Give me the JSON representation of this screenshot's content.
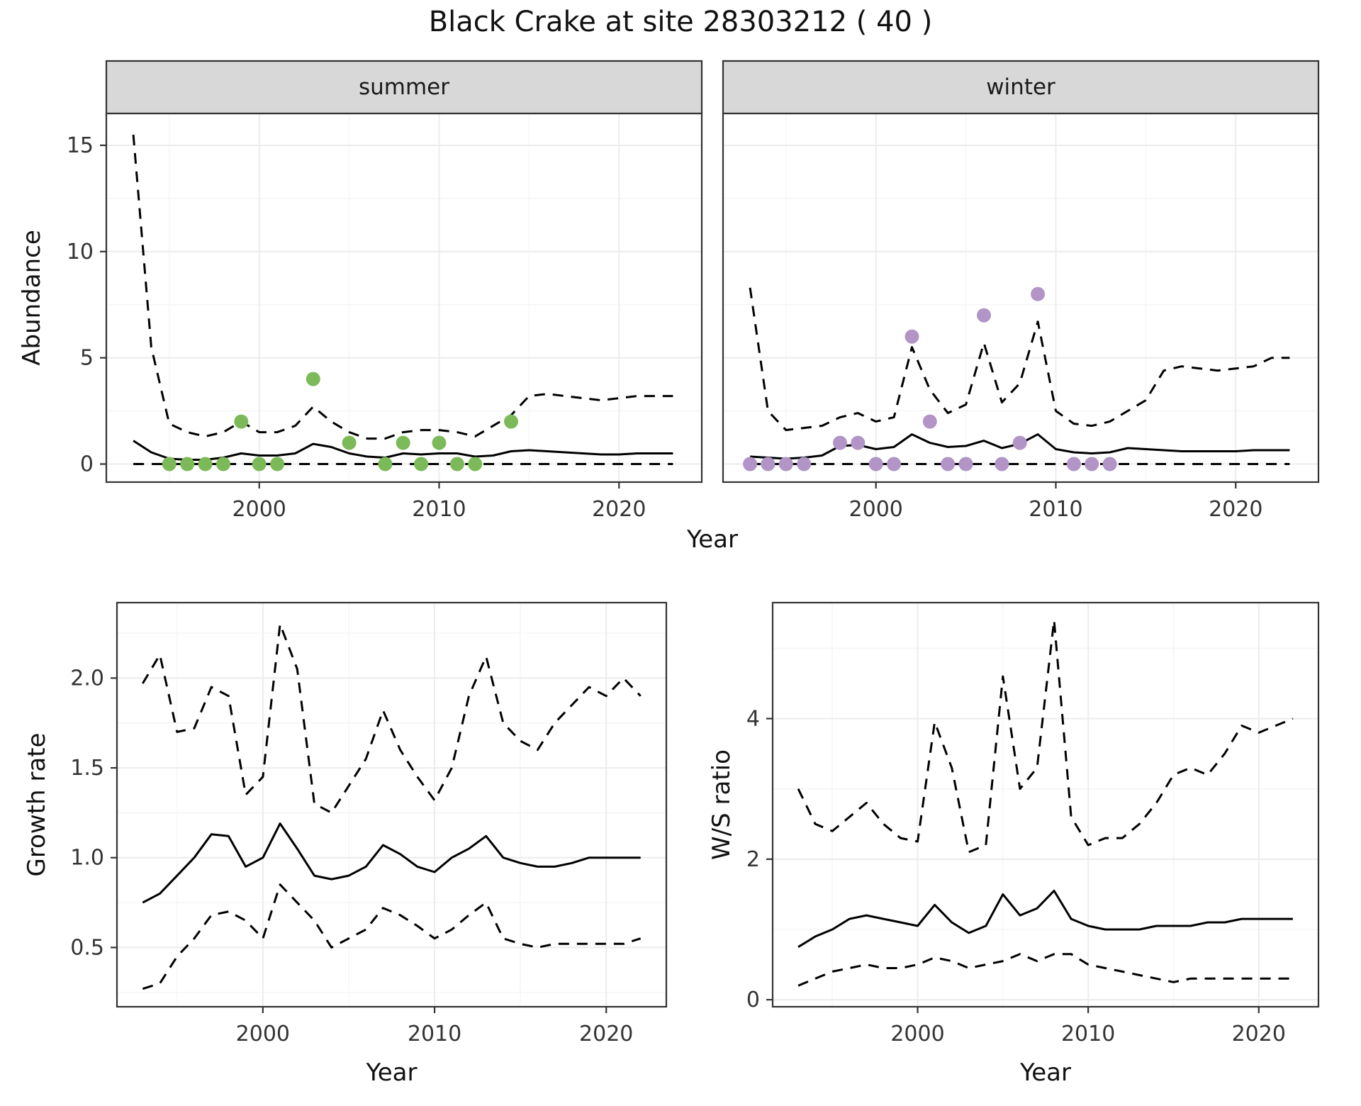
{
  "title": "Black Crake at site 28303212 ( 40 )",
  "background": "#ffffff",
  "colors": {
    "line": "#000000",
    "summer_point": "#7cba59",
    "winter_point": "#b294c7",
    "strip_bg": "#d8d8d8",
    "panel_border": "#333333",
    "grid_major": "#ececec",
    "grid_minor": "#f6f6f6",
    "tick_text": "#333333"
  },
  "chart_data": [
    {
      "type": "line",
      "facet": "summer",
      "xlabel": "Year",
      "ylabel": "Abundance",
      "xlim": [
        1991.5,
        2024.6
      ],
      "ylim": [
        -0.85,
        16.5
      ],
      "xticks": [
        2000,
        2010,
        2020
      ],
      "xtick_labels": [
        "2000",
        "2010",
        "2020"
      ],
      "yticks": [
        0,
        5,
        10,
        15
      ],
      "ytick_labels": [
        "0",
        "5",
        "10",
        "15"
      ],
      "xticks_minor": [
        1995,
        2005,
        2015
      ],
      "yticks_minor": [
        2.5,
        7.5,
        12.5
      ],
      "x": [
        1993,
        1994,
        1995,
        1996,
        1997,
        1998,
        1999,
        2000,
        2001,
        2002,
        2003,
        2004,
        2005,
        2006,
        2007,
        2008,
        2009,
        2010,
        2011,
        2012,
        2013,
        2014,
        2015,
        2016,
        2017,
        2018,
        2019,
        2020,
        2021,
        2022,
        2023
      ],
      "series": [
        {
          "name": "median",
          "style": "solid",
          "values": [
            1.1,
            0.55,
            0.25,
            0.2,
            0.2,
            0.3,
            0.5,
            0.4,
            0.4,
            0.5,
            0.95,
            0.8,
            0.5,
            0.35,
            0.3,
            0.5,
            0.45,
            0.5,
            0.5,
            0.35,
            0.4,
            0.6,
            0.65,
            0.6,
            0.55,
            0.5,
            0.45,
            0.45,
            0.5,
            0.5,
            0.5
          ]
        },
        {
          "name": "upper_ci",
          "style": "dashed",
          "values": [
            15.5,
            5.5,
            1.9,
            1.5,
            1.3,
            1.5,
            2.0,
            1.5,
            1.5,
            1.8,
            2.7,
            2.0,
            1.5,
            1.2,
            1.2,
            1.5,
            1.6,
            1.6,
            1.5,
            1.3,
            1.8,
            2.3,
            3.2,
            3.3,
            3.2,
            3.1,
            3.0,
            3.1,
            3.2,
            3.2,
            3.2
          ]
        },
        {
          "name": "lower_ci",
          "style": "dashed",
          "values": [
            0,
            0,
            0,
            0,
            0,
            0,
            0,
            0,
            0,
            0,
            0,
            0,
            0,
            0,
            0,
            0,
            0,
            0,
            0,
            0,
            0,
            0,
            0,
            0,
            0,
            0,
            0,
            0,
            0,
            0,
            0
          ]
        }
      ],
      "points": {
        "name": "observed_counts",
        "color_key": "summer_point",
        "x": [
          1995,
          1996,
          1997,
          1998,
          1999,
          2000,
          2001,
          2003,
          2005,
          2007,
          2008,
          2009,
          2010,
          2011,
          2012,
          2014
        ],
        "y": [
          0,
          0,
          0,
          0,
          2,
          0,
          0,
          4,
          1,
          0,
          1,
          0,
          1,
          0,
          0,
          2
        ]
      }
    },
    {
      "type": "line",
      "facet": "winter",
      "xlabel": "Year",
      "ylabel": "Abundance",
      "xlim": [
        1991.5,
        2024.6
      ],
      "ylim": [
        -0.85,
        16.5
      ],
      "xticks": [
        2000,
        2010,
        2020
      ],
      "xtick_labels": [
        "2000",
        "2010",
        "2020"
      ],
      "yticks": [
        0,
        5,
        10,
        15
      ],
      "ytick_labels": [
        "0",
        "5",
        "10",
        "15"
      ],
      "xticks_minor": [
        1995,
        2005,
        2015
      ],
      "yticks_minor": [
        2.5,
        7.5,
        12.5
      ],
      "x": [
        1993,
        1994,
        1995,
        1996,
        1997,
        1998,
        1999,
        2000,
        2001,
        2002,
        2003,
        2004,
        2005,
        2006,
        2007,
        2008,
        2009,
        2010,
        2011,
        2012,
        2013,
        2014,
        2015,
        2016,
        2017,
        2018,
        2019,
        2020,
        2021,
        2022,
        2023
      ],
      "series": [
        {
          "name": "median",
          "style": "solid",
          "values": [
            0.35,
            0.3,
            0.25,
            0.3,
            0.4,
            0.85,
            0.9,
            0.7,
            0.8,
            1.4,
            1.0,
            0.8,
            0.85,
            1.1,
            0.75,
            0.95,
            1.4,
            0.7,
            0.55,
            0.5,
            0.55,
            0.75,
            0.7,
            0.65,
            0.6,
            0.6,
            0.6,
            0.6,
            0.65,
            0.65,
            0.65
          ]
        },
        {
          "name": "upper_ci",
          "style": "dashed",
          "values": [
            8.3,
            2.5,
            1.6,
            1.7,
            1.8,
            2.2,
            2.4,
            2.0,
            2.2,
            5.5,
            3.5,
            2.4,
            2.8,
            5.7,
            2.9,
            3.8,
            6.7,
            2.5,
            1.9,
            1.8,
            2.0,
            2.5,
            3.0,
            4.4,
            4.6,
            4.5,
            4.4,
            4.5,
            4.6,
            5.0,
            5.0
          ]
        },
        {
          "name": "lower_ci",
          "style": "dashed",
          "values": [
            0,
            0,
            0,
            0,
            0,
            0,
            0,
            0,
            0,
            0,
            0,
            0,
            0,
            0,
            0,
            0,
            0,
            0,
            0,
            0,
            0,
            0,
            0,
            0,
            0,
            0,
            0,
            0,
            0,
            0,
            0
          ]
        }
      ],
      "points": {
        "name": "observed_counts",
        "color_key": "winter_point",
        "x": [
          1993,
          1994,
          1995,
          1996,
          1998,
          1999,
          2000,
          2001,
          2002,
          2003,
          2004,
          2005,
          2006,
          2007,
          2008,
          2009,
          2011,
          2012,
          2013
        ],
        "y": [
          0,
          0,
          0,
          0,
          1,
          1,
          0,
          0,
          6,
          2,
          0,
          0,
          7,
          0,
          1,
          8,
          0,
          0,
          0
        ]
      }
    },
    {
      "type": "line",
      "xlabel": "Year",
      "ylabel": "Growth rate",
      "xlim": [
        1991.5,
        2023.5
      ],
      "ylim": [
        0.17,
        2.42
      ],
      "xticks": [
        2000,
        2010,
        2020
      ],
      "xtick_labels": [
        "2000",
        "2010",
        "2020"
      ],
      "yticks": [
        0.5,
        1.0,
        1.5,
        2.0
      ],
      "ytick_labels": [
        "0.5",
        "1.0",
        "1.5",
        "2.0"
      ],
      "xticks_minor": [
        1995,
        2005,
        2015
      ],
      "yticks_minor": [
        0.25,
        0.75,
        1.25,
        1.75,
        2.25
      ],
      "x": [
        1993,
        1994,
        1995,
        1996,
        1997,
        1998,
        1999,
        2000,
        2001,
        2002,
        2003,
        2004,
        2005,
        2006,
        2007,
        2008,
        2009,
        2010,
        2011,
        2012,
        2013,
        2014,
        2015,
        2016,
        2017,
        2018,
        2019,
        2020,
        2021,
        2022
      ],
      "series": [
        {
          "name": "median",
          "style": "solid",
          "values": [
            0.75,
            0.8,
            0.9,
            1.0,
            1.13,
            1.12,
            0.95,
            1.0,
            1.19,
            1.05,
            0.9,
            0.88,
            0.9,
            0.95,
            1.07,
            1.02,
            0.95,
            0.92,
            1.0,
            1.05,
            1.12,
            1.0,
            0.97,
            0.95,
            0.95,
            0.97,
            1.0,
            1.0,
            1.0,
            1.0
          ]
        },
        {
          "name": "upper_ci",
          "style": "dashed",
          "values": [
            1.97,
            2.13,
            1.7,
            1.72,
            1.95,
            1.9,
            1.35,
            1.45,
            2.3,
            2.05,
            1.3,
            1.25,
            1.4,
            1.55,
            1.82,
            1.6,
            1.45,
            1.32,
            1.5,
            1.9,
            2.12,
            1.75,
            1.65,
            1.6,
            1.75,
            1.85,
            1.95,
            1.9,
            2.0,
            1.9
          ]
        },
        {
          "name": "lower_ci",
          "style": "dashed",
          "values": [
            0.27,
            0.3,
            0.45,
            0.55,
            0.68,
            0.7,
            0.65,
            0.55,
            0.85,
            0.75,
            0.65,
            0.5,
            0.55,
            0.6,
            0.72,
            0.68,
            0.62,
            0.55,
            0.6,
            0.68,
            0.75,
            0.55,
            0.52,
            0.5,
            0.52,
            0.52,
            0.52,
            0.52,
            0.52,
            0.55
          ]
        }
      ]
    },
    {
      "type": "line",
      "xlabel": "Year",
      "ylabel": "W/S ratio",
      "xlim": [
        1991.5,
        2023.5
      ],
      "ylim": [
        -0.1,
        5.65
      ],
      "xticks": [
        2000,
        2010,
        2020
      ],
      "xtick_labels": [
        "2000",
        "2010",
        "2020"
      ],
      "yticks": [
        0,
        2,
        4
      ],
      "ytick_labels": [
        "0",
        "2",
        "4"
      ],
      "xticks_minor": [
        1995,
        2005,
        2015
      ],
      "yticks_minor": [
        1,
        3,
        5
      ],
      "x": [
        1993,
        1994,
        1995,
        1996,
        1997,
        1998,
        1999,
        2000,
        2001,
        2002,
        2003,
        2004,
        2005,
        2006,
        2007,
        2008,
        2009,
        2010,
        2011,
        2012,
        2013,
        2014,
        2015,
        2016,
        2017,
        2018,
        2019,
        2020,
        2021,
        2022
      ],
      "series": [
        {
          "name": "median",
          "style": "solid",
          "values": [
            0.75,
            0.9,
            1.0,
            1.15,
            1.2,
            1.15,
            1.1,
            1.05,
            1.35,
            1.1,
            0.95,
            1.05,
            1.5,
            1.2,
            1.3,
            1.55,
            1.15,
            1.05,
            1.0,
            1.0,
            1.0,
            1.05,
            1.05,
            1.05,
            1.1,
            1.1,
            1.15,
            1.15,
            1.15,
            1.15
          ]
        },
        {
          "name": "upper_ci",
          "style": "dashed",
          "values": [
            3.0,
            2.5,
            2.4,
            2.6,
            2.8,
            2.5,
            2.3,
            2.25,
            3.95,
            3.3,
            2.1,
            2.2,
            4.6,
            3.0,
            3.3,
            5.4,
            2.6,
            2.2,
            2.3,
            2.3,
            2.5,
            2.8,
            3.2,
            3.3,
            3.2,
            3.5,
            3.9,
            3.8,
            3.9,
            4.0
          ]
        },
        {
          "name": "lower_ci",
          "style": "dashed",
          "values": [
            0.2,
            0.3,
            0.4,
            0.45,
            0.5,
            0.45,
            0.45,
            0.5,
            0.6,
            0.55,
            0.45,
            0.5,
            0.55,
            0.65,
            0.55,
            0.65,
            0.65,
            0.5,
            0.45,
            0.4,
            0.35,
            0.3,
            0.25,
            0.3,
            0.3,
            0.3,
            0.3,
            0.3,
            0.3,
            0.3
          ]
        }
      ]
    }
  ]
}
